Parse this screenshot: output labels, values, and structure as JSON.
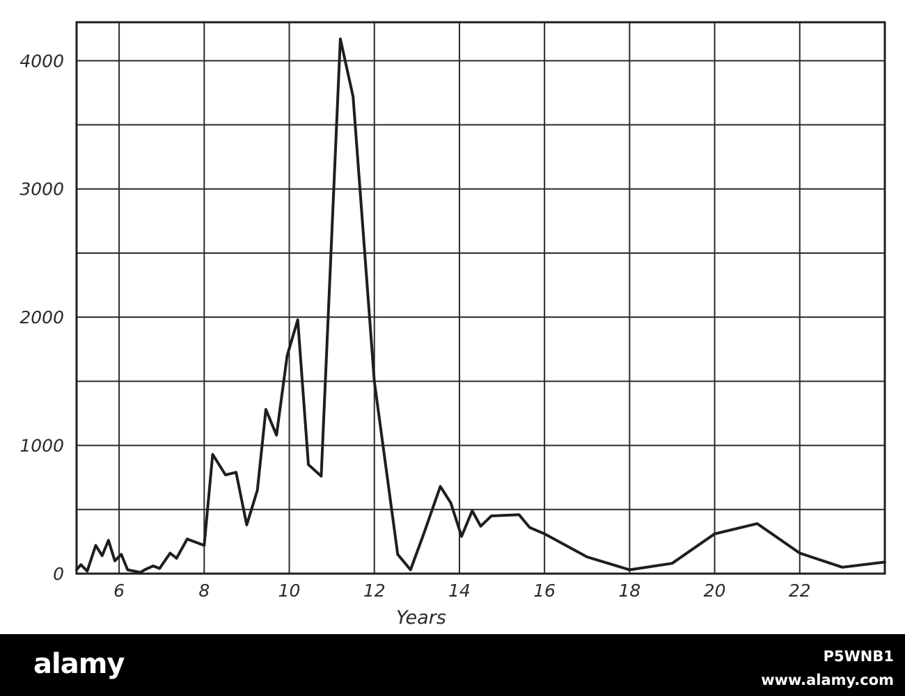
{
  "chart_data": {
    "type": "line",
    "xlabel": "Years",
    "ylabel": "",
    "xlim": [
      5,
      24
    ],
    "ylim": [
      0,
      4300
    ],
    "x_ticks": [
      6,
      8,
      10,
      12,
      14,
      16,
      18,
      20,
      22
    ],
    "x_tick_labels": [
      "6",
      "8",
      "10",
      "12",
      "14",
      "16",
      "18",
      "20",
      "22"
    ],
    "y_ticks": [
      0,
      1000,
      2000,
      3000,
      4000
    ],
    "y_tick_labels": [
      "0",
      "1000",
      "2000",
      "3000",
      "4000"
    ],
    "x_grid": [
      6,
      8,
      10,
      12,
      14,
      16,
      18,
      20,
      22
    ],
    "y_grid": [
      500,
      1000,
      1500,
      2000,
      2500,
      3000,
      3500,
      4000
    ],
    "grid": true,
    "series": [
      {
        "points": [
          [
            5.0,
            30
          ],
          [
            5.1,
            70
          ],
          [
            5.25,
            20
          ],
          [
            5.45,
            220
          ],
          [
            5.6,
            140
          ],
          [
            5.75,
            260
          ],
          [
            5.9,
            100
          ],
          [
            6.05,
            150
          ],
          [
            6.2,
            30
          ],
          [
            6.5,
            10
          ],
          [
            6.6,
            30
          ],
          [
            6.8,
            60
          ],
          [
            6.95,
            40
          ],
          [
            7.2,
            160
          ],
          [
            7.35,
            120
          ],
          [
            7.6,
            270
          ],
          [
            8.0,
            220
          ],
          [
            8.2,
            930
          ],
          [
            8.5,
            770
          ],
          [
            8.75,
            790
          ],
          [
            9.0,
            380
          ],
          [
            9.25,
            650
          ],
          [
            9.45,
            1280
          ],
          [
            9.7,
            1080
          ],
          [
            9.95,
            1700
          ],
          [
            10.2,
            1980
          ],
          [
            10.45,
            850
          ],
          [
            10.75,
            760
          ],
          [
            11.2,
            4170
          ],
          [
            11.5,
            3720
          ],
          [
            12.0,
            1500
          ],
          [
            12.55,
            150
          ],
          [
            12.85,
            30
          ],
          [
            13.15,
            300
          ],
          [
            13.55,
            680
          ],
          [
            13.8,
            550
          ],
          [
            14.05,
            290
          ],
          [
            14.3,
            490
          ],
          [
            14.5,
            370
          ],
          [
            14.75,
            450
          ],
          [
            15.4,
            460
          ],
          [
            15.65,
            360
          ],
          [
            16.0,
            310
          ],
          [
            17.0,
            130
          ],
          [
            18.0,
            30
          ],
          [
            19.0,
            80
          ],
          [
            20.0,
            310
          ],
          [
            21.0,
            390
          ],
          [
            22.0,
            160
          ],
          [
            23.0,
            50
          ],
          [
            24.0,
            90
          ]
        ]
      }
    ],
    "colors": {
      "line": "#1e1e1e",
      "grid": "#2a2a2a",
      "background": "#ffffff"
    }
  },
  "footer": {
    "brand": "alamy",
    "image_id": "P5WNB1",
    "watermark": "www.alamy.com",
    "background": "#000000",
    "text_color": "#ffffff"
  }
}
